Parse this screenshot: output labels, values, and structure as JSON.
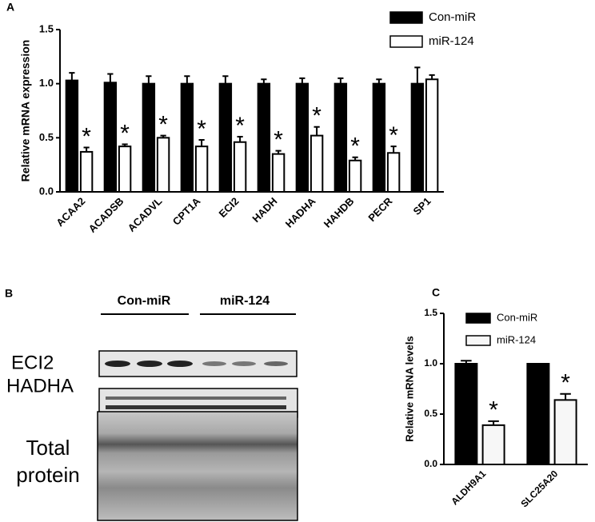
{
  "chart_data": [
    {
      "type": "bar",
      "panel_label": "A",
      "y_label": "Relative mRNA  expression",
      "categories": [
        "ACAA2",
        "ACADSB",
        "ACADVL",
        "CPT1A",
        "ECI2",
        "HADH",
        "HADHA",
        "HAHDB",
        "PECR",
        "SP1"
      ],
      "series": [
        {
          "name": "Con-miR",
          "color": "#000000",
          "values": [
            1.03,
            1.01,
            1.0,
            1.0,
            1.0,
            1.0,
            1.0,
            1.0,
            1.0,
            1.0
          ],
          "errors": [
            0.07,
            0.08,
            0.07,
            0.07,
            0.07,
            0.04,
            0.05,
            0.05,
            0.04,
            0.15
          ]
        },
        {
          "name": "miR-124",
          "color": "#ffffff",
          "values": [
            0.37,
            0.42,
            0.5,
            0.42,
            0.46,
            0.35,
            0.52,
            0.29,
            0.36,
            1.04
          ],
          "errors": [
            0.04,
            0.02,
            0.02,
            0.06,
            0.05,
            0.03,
            0.08,
            0.03,
            0.06,
            0.04
          ]
        }
      ],
      "significance": [
        "*",
        "*",
        "*",
        "*",
        "*",
        "*",
        "*",
        "*",
        "*",
        null
      ],
      "ylim": [
        0,
        1.5
      ],
      "yticks": [
        {
          "value": 0,
          "label": "0.0"
        },
        0.5,
        {
          "value": 1,
          "label": "1.0"
        },
        1.5
      ],
      "legend": "top-right"
    },
    {
      "type": "bar",
      "panel_label": "C",
      "y_label": "Relative mRNA levels",
      "categories": [
        "ALDH9A1",
        "SLC25A20"
      ],
      "series": [
        {
          "name": "Con-miR",
          "color": "#000000",
          "values": [
            1.0,
            1.0
          ],
          "errors": [
            0.03,
            0
          ]
        },
        {
          "name": "miR-124",
          "color": "#f7f7f7",
          "values": [
            0.39,
            0.64
          ],
          "errors": [
            0.04,
            0.06
          ]
        }
      ],
      "significance": [
        "*",
        "*"
      ],
      "ylim": [
        0,
        1.5
      ],
      "yticks": [
        {
          "value": 0,
          "label": "0.0"
        },
        0.5,
        {
          "value": 1,
          "label": "1.0"
        },
        1.5
      ],
      "legend": "top-left"
    }
  ],
  "blot": {
    "panel_label": "B",
    "group_1": "Con-miR",
    "group_2": "miR-124",
    "row_1": "ECI2",
    "row_2": "HADHA",
    "row_3": "Total protein"
  }
}
